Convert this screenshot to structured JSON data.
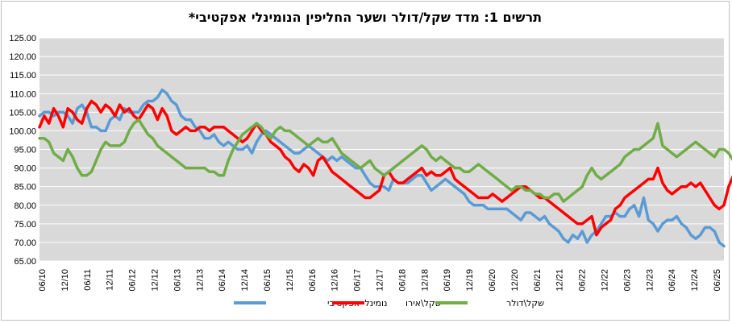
{
  "chart_data": {
    "type": "line",
    "title": "תרשים 1: מדד שקל/דולר ושער החליפין הנומינלי אפקטיבי*",
    "xlabel": "",
    "ylabel": "",
    "ylim": [
      65,
      125
    ],
    "yticks": [
      "125.00",
      "120.00",
      "115.00",
      "110.00",
      "105.00",
      "100.00",
      "95.00",
      "90.00",
      "85.00",
      "80.00",
      "75.00",
      "70.00",
      "65.00"
    ],
    "xticks": [
      "06/10",
      "12/10",
      "06/11",
      "12/11",
      "06/12",
      "12/12",
      "06/13",
      "12/13",
      "06/14",
      "12/14",
      "06/15",
      "12/15",
      "06/16",
      "12/16",
      "06/17",
      "12/17",
      "06/18",
      "12/18",
      "06/19",
      "12/19",
      "06/20",
      "12/20",
      "06/21",
      "12/21",
      "06/22",
      "12/22",
      "06/23",
      "12/23",
      "06/24",
      "12/24",
      "06/25"
    ],
    "grid": true,
    "legend_position": "bottom",
    "series": [
      {
        "name": "נומינלי אפקטיבי",
        "color": "#5b9bd5",
        "values": [
          104,
          105,
          105,
          104,
          105,
          105,
          104,
          102,
          106,
          107,
          105,
          101,
          101,
          100,
          100,
          103,
          104,
          103,
          106,
          105,
          105,
          105,
          107,
          108,
          108,
          109,
          111,
          110,
          108,
          107,
          104,
          103,
          103,
          101,
          100,
          98,
          98,
          99,
          97,
          96,
          97,
          96,
          95,
          95,
          96,
          94,
          97,
          99,
          100,
          99,
          98,
          97,
          96,
          95,
          94,
          94,
          95,
          96,
          95,
          94,
          93,
          92,
          93,
          92,
          93,
          92,
          91,
          90,
          90,
          88,
          86,
          85,
          85,
          85,
          84,
          87,
          86,
          86,
          86,
          87,
          88,
          88,
          86,
          84,
          85,
          86,
          87,
          86,
          85,
          84,
          83,
          81,
          80,
          80,
          80,
          79,
          79,
          79,
          79,
          79,
          78,
          77,
          76,
          78,
          78,
          77,
          76,
          77,
          75,
          74,
          73,
          71,
          70,
          72,
          71,
          73,
          70,
          72,
          73,
          75,
          77,
          77,
          78,
          77,
          77,
          79,
          80,
          77,
          82,
          76,
          75,
          73,
          75,
          76,
          76,
          77,
          75,
          74,
          72,
          71,
          72,
          74,
          74,
          73,
          70,
          69
        ]
      },
      {
        "name": "שקל\\אירו",
        "color": "#ff0000",
        "values": [
          101,
          104,
          102,
          106,
          104,
          101,
          106,
          105,
          103,
          102,
          106,
          108,
          107,
          105,
          107,
          106,
          104,
          107,
          105,
          106,
          104,
          103,
          105,
          107,
          106,
          103,
          106,
          104,
          100,
          99,
          100,
          101,
          100,
          100,
          101,
          101,
          100,
          101,
          101,
          101,
          100,
          99,
          98,
          97,
          98,
          100,
          102,
          100,
          99,
          97,
          96,
          95,
          93,
          92,
          90,
          89,
          91,
          90,
          88,
          92,
          93,
          91,
          89,
          88,
          87,
          86,
          85,
          84,
          83,
          82,
          82,
          83,
          84,
          88,
          89,
          87,
          86,
          86,
          87,
          88,
          89,
          90,
          88,
          89,
          88,
          88,
          89,
          90,
          87,
          86,
          85,
          84,
          83,
          82,
          82,
          82,
          83,
          82,
          81,
          82,
          83,
          84,
          85,
          85,
          84,
          83,
          82,
          82,
          81,
          80,
          79,
          78,
          77,
          76,
          75,
          75,
          76,
          77,
          72,
          74,
          75,
          76,
          79,
          80,
          82,
          83,
          84,
          85,
          86,
          87,
          87,
          90,
          86,
          84,
          83,
          84,
          85,
          85,
          86,
          85,
          86,
          84,
          82,
          80,
          79,
          80,
          85,
          88,
          84,
          83,
          82,
          82
        ]
      },
      {
        "name": "שקל\\דולר",
        "color": "#70ad47",
        "values": [
          98,
          98,
          97,
          94,
          93,
          92,
          95,
          93,
          90,
          88,
          88,
          89,
          92,
          95,
          97,
          96,
          96,
          96,
          97,
          100,
          102,
          103,
          101,
          99,
          98,
          96,
          95,
          94,
          93,
          92,
          91,
          90,
          90,
          90,
          90,
          90,
          89,
          89,
          88,
          88,
          92,
          95,
          97,
          99,
          100,
          101,
          102,
          101,
          99,
          98,
          100,
          101,
          100,
          100,
          99,
          98,
          97,
          96,
          97,
          98,
          97,
          97,
          98,
          96,
          94,
          93,
          92,
          91,
          90,
          91,
          92,
          90,
          89,
          88,
          89,
          90,
          91,
          92,
          93,
          94,
          95,
          96,
          95,
          93,
          92,
          93,
          92,
          91,
          90,
          90,
          89,
          89,
          90,
          91,
          90,
          89,
          88,
          87,
          86,
          85,
          84,
          85,
          85,
          84,
          84,
          83,
          83,
          82,
          82,
          83,
          83,
          81,
          82,
          83,
          84,
          85,
          88,
          90,
          88,
          87,
          88,
          89,
          90,
          91,
          93,
          94,
          95,
          95,
          96,
          97,
          98,
          102,
          96,
          95,
          94,
          93,
          94,
          95,
          96,
          97,
          96,
          95,
          94,
          93,
          95,
          95,
          94,
          92,
          88,
          87,
          86
        ]
      }
    ]
  }
}
